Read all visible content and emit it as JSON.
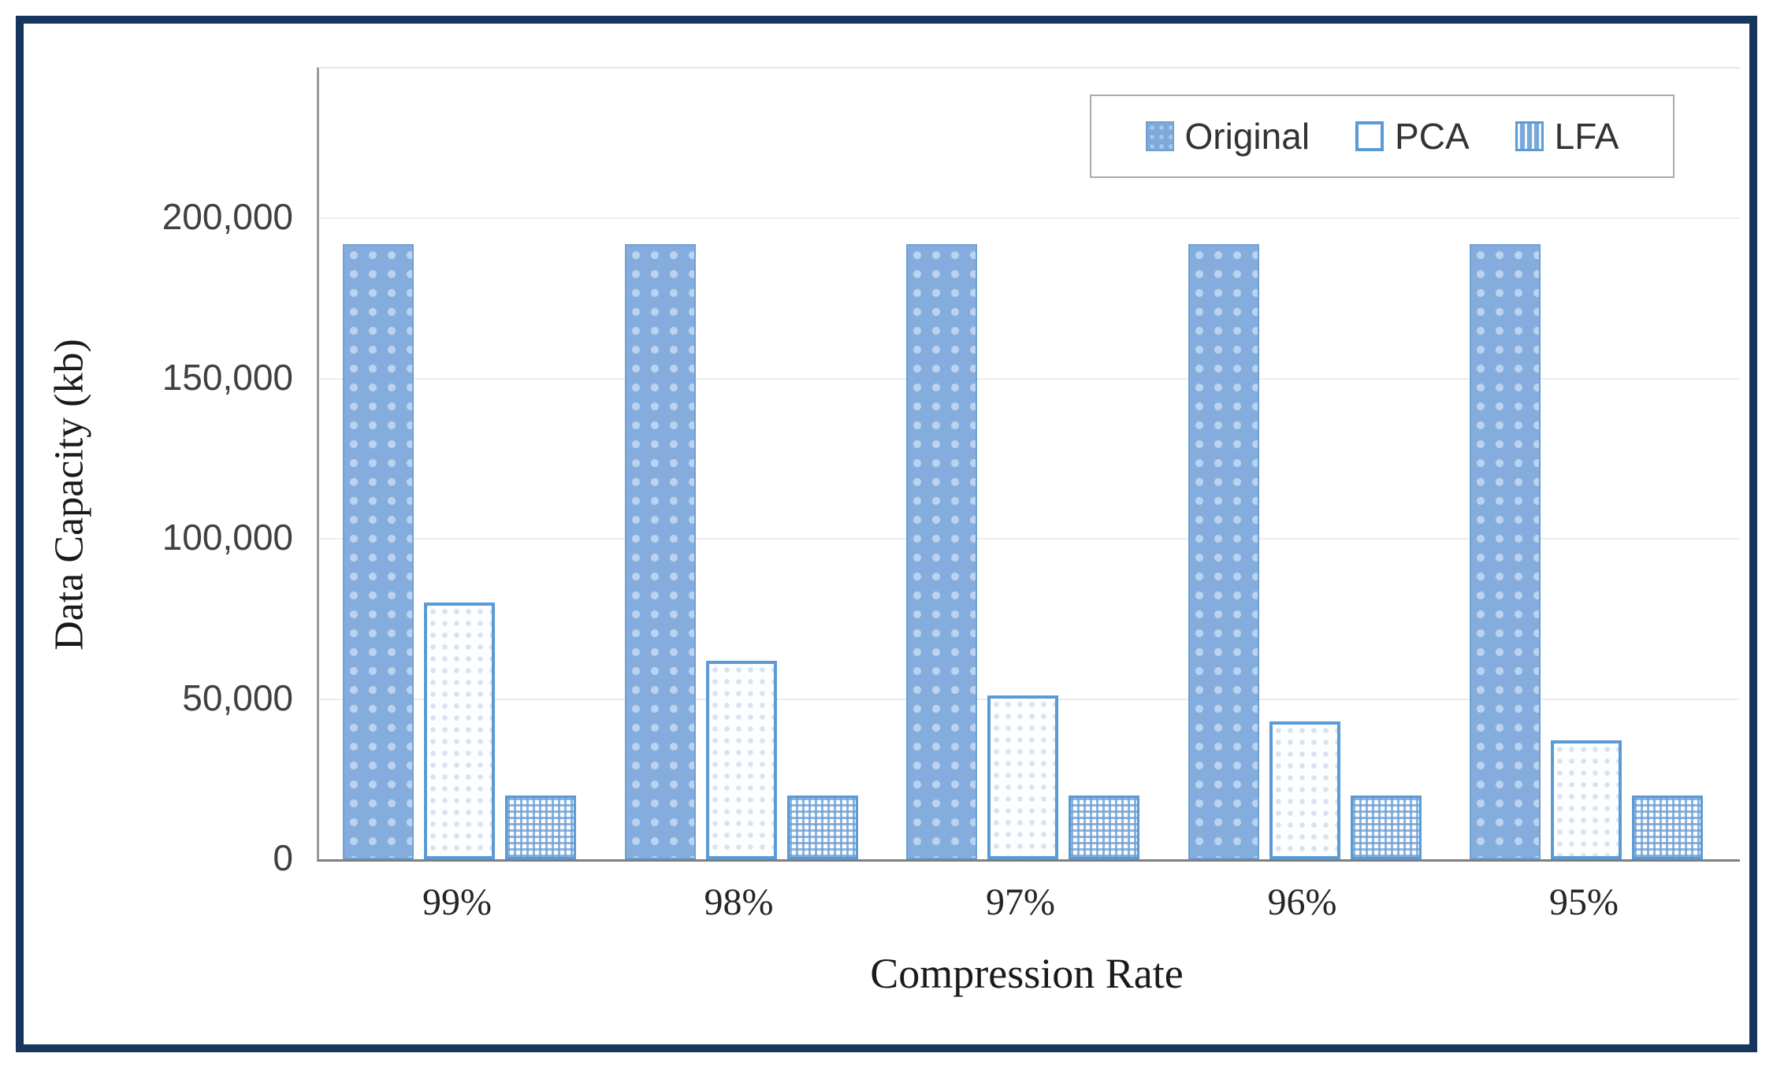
{
  "frame": {
    "border_color": "#17365D"
  },
  "chart_data": {
    "type": "bar",
    "title": "",
    "xlabel": "Compression Rate",
    "ylabel": "Data Capacity (kb)",
    "categories": [
      "99%",
      "98%",
      "97%",
      "96%",
      "95%"
    ],
    "series": [
      {
        "name": "Original",
        "pattern": "dotted-solid-blue",
        "values": [
          192000,
          192000,
          192000,
          192000,
          192000
        ]
      },
      {
        "name": "PCA",
        "pattern": "hollow-white-blue-border",
        "values": [
          80000,
          62000,
          51000,
          43000,
          37000
        ]
      },
      {
        "name": "LFA",
        "pattern": "blue-checker-grid",
        "values": [
          20000,
          20000,
          20000,
          20000,
          20000
        ]
      }
    ],
    "ylim": [
      0,
      200000
    ],
    "ytick_interval": 50000,
    "yticks": [
      0,
      50000,
      100000,
      150000,
      200000
    ],
    "ytick_labels": [
      "0",
      "50,000",
      "100,000",
      "150,000",
      "200,000"
    ],
    "grid": "horizontal",
    "legend_position": "top-right"
  },
  "legend": {
    "items": [
      {
        "label": "Original",
        "pattern": "original"
      },
      {
        "label": "PCA",
        "pattern": "pca"
      },
      {
        "label": "LFA",
        "pattern": "lfa"
      }
    ]
  },
  "colors": {
    "accent_blue": "#5B9BD5",
    "bar_fill": "#84ACDC",
    "frame_navy": "#17365D",
    "axis_gray": "#8C8C8C",
    "gridline_gray": "#ECECEC",
    "text_dark": "#262626"
  }
}
